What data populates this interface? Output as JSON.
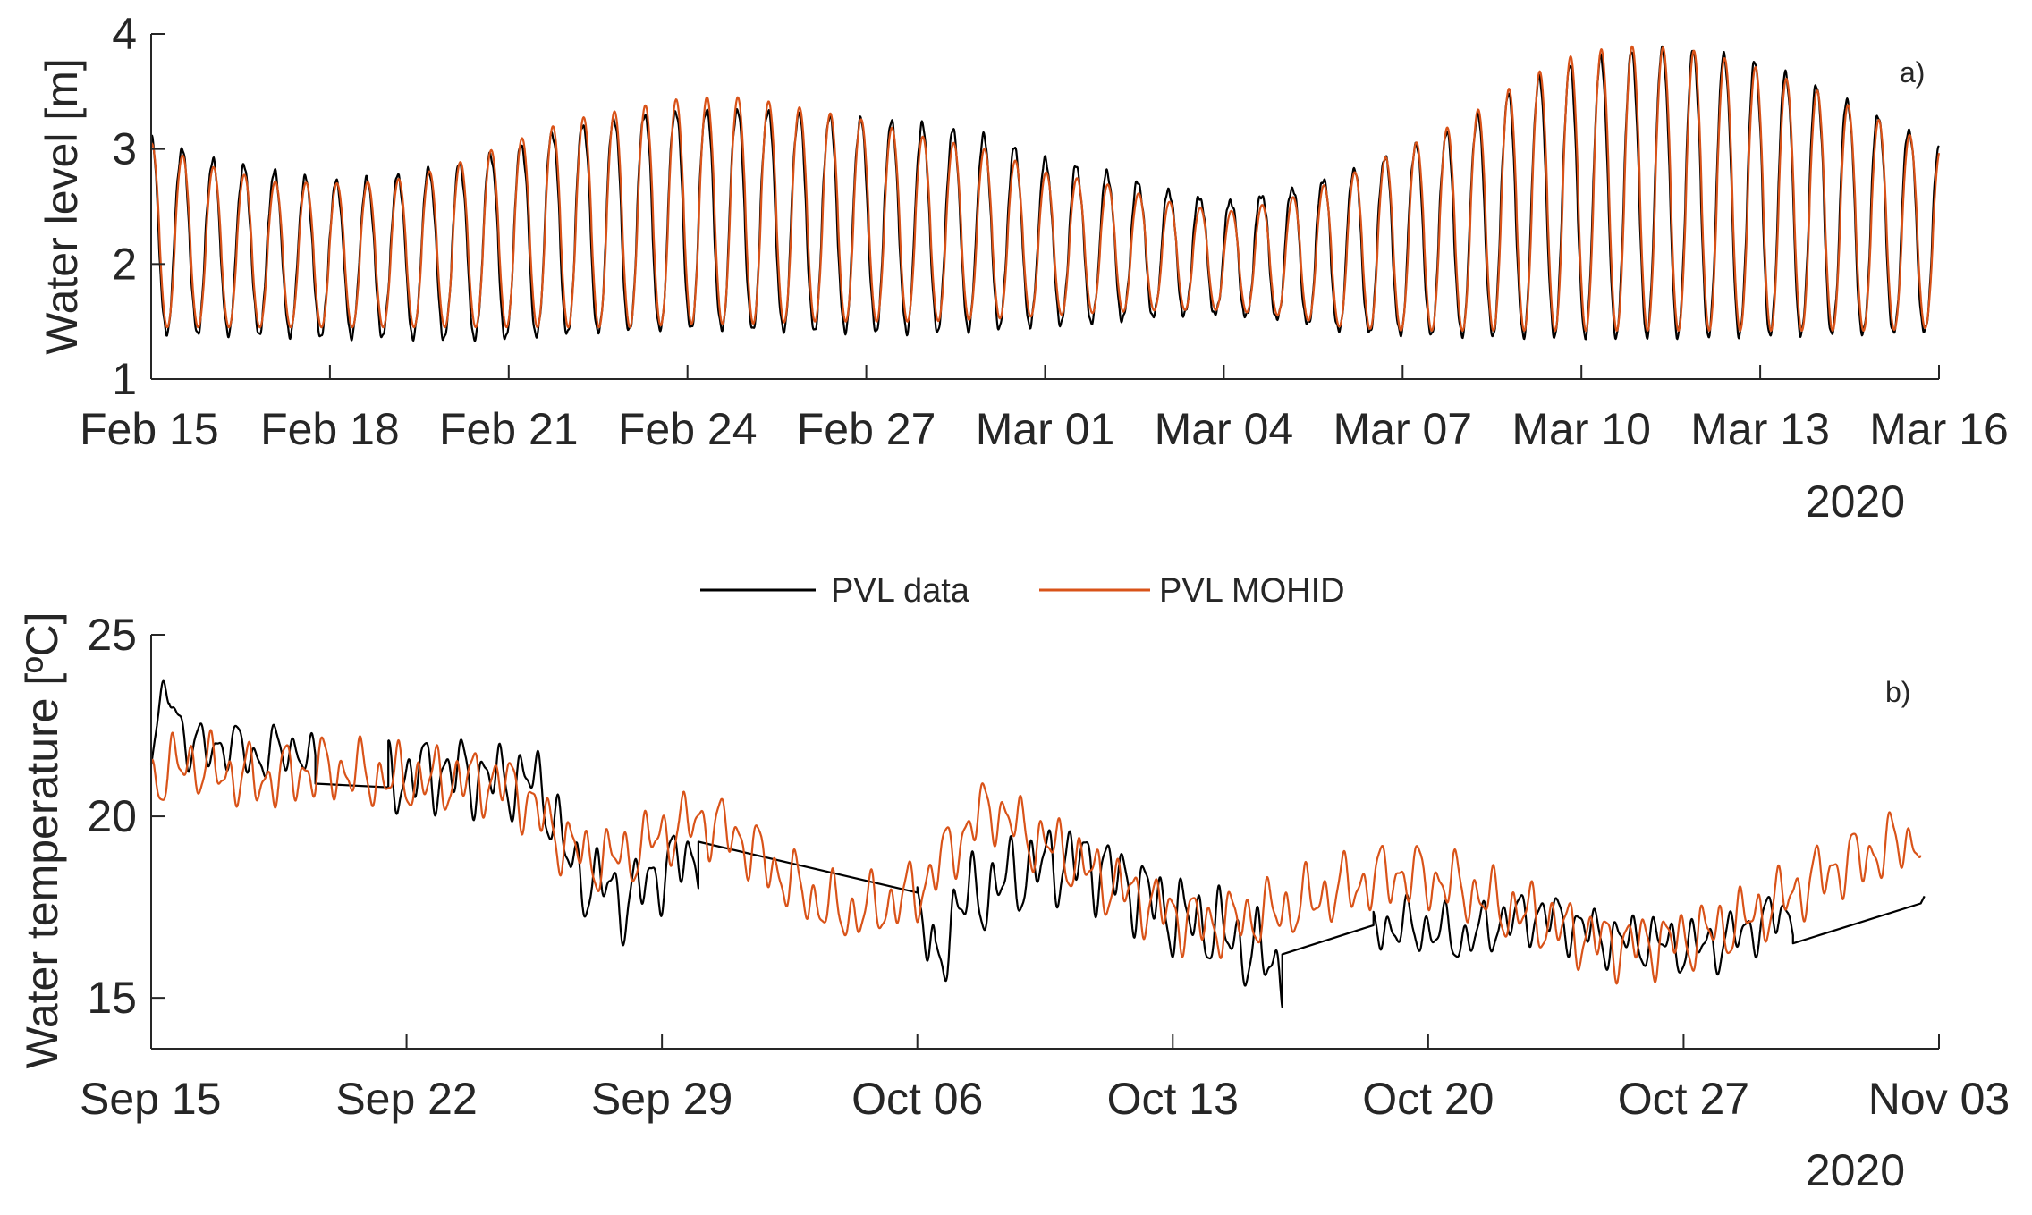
{
  "colors": {
    "data": "#000000",
    "model": "#d95319",
    "axis": "#262626"
  },
  "legend": {
    "entries": [
      {
        "label": "PVL data",
        "color": "#000000"
      },
      {
        "label": "PVL MOHID",
        "color": "#d95319"
      }
    ]
  },
  "chart_data": [
    {
      "type": "line",
      "panel_label": "a)",
      "ylabel": "Water level [m]",
      "ylim": [
        1,
        4
      ],
      "yticks": [
        1,
        2,
        3,
        4
      ],
      "year_label": "2020",
      "xlim_days": [
        0,
        30
      ],
      "xticks": [
        {
          "day": 0,
          "label": "Feb 15"
        },
        {
          "day": 3,
          "label": "Feb 18"
        },
        {
          "day": 6,
          "label": "Feb 21"
        },
        {
          "day": 9,
          "label": "Feb 24"
        },
        {
          "day": 12,
          "label": "Feb 27"
        },
        {
          "day": 15,
          "label": "Mar 01"
        },
        {
          "day": 18,
          "label": "Mar 04"
        },
        {
          "day": 21,
          "label": "Mar 07"
        },
        {
          "day": 24,
          "label": "Mar 10"
        },
        {
          "day": 27,
          "label": "Mar 13"
        },
        {
          "day": 30,
          "label": "Mar 16"
        }
      ],
      "tidal_period_days": 0.5175,
      "series": [
        {
          "name": "PVL data",
          "envelope_days": [
            0,
            1,
            2,
            3,
            4,
            5,
            6,
            7,
            8,
            9,
            10,
            11,
            12,
            13,
            14,
            15,
            16,
            17,
            18,
            19,
            20,
            21,
            22,
            23,
            24,
            25,
            26,
            27,
            28,
            29,
            30
          ],
          "high": [
            3.1,
            2.9,
            2.8,
            2.7,
            2.75,
            2.85,
            3.0,
            3.2,
            3.3,
            3.35,
            3.35,
            3.3,
            3.25,
            3.2,
            3.1,
            2.9,
            2.8,
            2.65,
            2.55,
            2.65,
            2.8,
            3.0,
            3.2,
            3.55,
            3.75,
            3.85,
            3.85,
            3.75,
            3.55,
            3.3,
            3.05
          ],
          "low": [
            1.4,
            1.4,
            1.4,
            1.38,
            1.38,
            1.35,
            1.35,
            1.38,
            1.4,
            1.42,
            1.42,
            1.42,
            1.42,
            1.42,
            1.45,
            1.48,
            1.5,
            1.55,
            1.55,
            1.5,
            1.4,
            1.38,
            1.38,
            1.38,
            1.38,
            1.38,
            1.38,
            1.38,
            1.38,
            1.38,
            1.4
          ]
        },
        {
          "name": "PVL MOHID",
          "envelope_days": [
            0,
            1,
            2,
            3,
            4,
            5,
            6,
            7,
            8,
            9,
            10,
            11,
            12,
            13,
            14,
            15,
            16,
            17,
            18,
            19,
            20,
            21,
            22,
            23,
            24,
            25,
            26,
            27,
            28,
            29,
            30
          ],
          "high": [
            3.05,
            2.85,
            2.72,
            2.7,
            2.72,
            2.85,
            3.05,
            3.25,
            3.35,
            3.45,
            3.45,
            3.35,
            3.25,
            3.1,
            3.0,
            2.8,
            2.7,
            2.55,
            2.45,
            2.55,
            2.75,
            3.0,
            3.25,
            3.6,
            3.85,
            3.9,
            3.85,
            3.7,
            3.5,
            3.25,
            3.0
          ],
          "low": [
            1.45,
            1.45,
            1.45,
            1.45,
            1.45,
            1.45,
            1.45,
            1.45,
            1.45,
            1.48,
            1.48,
            1.5,
            1.5,
            1.5,
            1.52,
            1.55,
            1.58,
            1.6,
            1.6,
            1.55,
            1.45,
            1.42,
            1.42,
            1.42,
            1.42,
            1.42,
            1.42,
            1.42,
            1.42,
            1.42,
            1.45
          ]
        }
      ]
    },
    {
      "type": "line",
      "panel_label": "b)",
      "ylabel": "Water temperature [ºC]",
      "ylim": [
        13.6,
        25
      ],
      "yticks": [
        15,
        20,
        25
      ],
      "year_label": "2020",
      "xlim_days": [
        0,
        49
      ],
      "xticks": [
        {
          "day": 0,
          "label": "Sep 15"
        },
        {
          "day": 7,
          "label": "Sep 22"
        },
        {
          "day": 14,
          "label": "Sep 29"
        },
        {
          "day": 21,
          "label": "Oct 06"
        },
        {
          "day": 28,
          "label": "Oct 13"
        },
        {
          "day": 35,
          "label": "Oct 20"
        },
        {
          "day": 42,
          "label": "Oct 27"
        },
        {
          "day": 49,
          "label": "Nov 03"
        }
      ],
      "series": [
        {
          "name": "PVL data",
          "segments": [
            {
              "days": [
                0,
                0.5,
                1,
                1.5,
                2,
                2.5,
                3,
                3.5,
                4,
                4.5
              ],
              "trend": [
                22.1,
                23.4,
                22.0,
                21.8,
                22.0,
                21.8,
                21.6,
                21.8,
                21.9,
                21.3
              ],
              "amp": 0.75
            },
            {
              "days": [
                4.5,
                6.5
              ],
              "trend": [
                20.9,
                20.8
              ],
              "amp": 0
            },
            {
              "days": [
                6.5,
                7.5,
                8.5,
                9.5,
                10.5,
                11,
                11.5,
                12,
                12.5,
                13,
                13.5,
                14,
                15
              ],
              "trend": [
                21.0,
                21.2,
                21.2,
                21.0,
                21.0,
                20.2,
                18.6,
                18.2,
                18.1,
                17.6,
                18.1,
                18.5,
                19.0
              ],
              "amp": 1.1
            },
            {
              "days": [
                15,
                21
              ],
              "trend": [
                19.3,
                17.9
              ],
              "amp": 0
            },
            {
              "days": [
                21,
                21.5,
                22,
                23,
                24,
                25,
                26,
                27,
                28,
                29,
                30,
                31
              ],
              "trend": [
                17.9,
                15.5,
                17.5,
                18.0,
                18.5,
                18.8,
                18.6,
                18.0,
                17.3,
                17.0,
                16.4,
                15.8
              ],
              "amp": 1.2
            },
            {
              "days": [
                31,
                33.5
              ],
              "trend": [
                16.2,
                17.0
              ],
              "amp": 0
            },
            {
              "days": [
                33.5,
                35,
                36,
                37,
                38,
                39,
                40,
                41,
                42,
                43,
                44,
                45
              ],
              "trend": [
                17.0,
                16.9,
                16.6,
                17.1,
                17.3,
                17.0,
                16.6,
                16.6,
                16.4,
                16.5,
                17.0,
                17.4
              ],
              "amp": 0.8
            },
            {
              "days": [
                45,
                48.5,
                48.6
              ],
              "trend": [
                16.5,
                17.6,
                17.8
              ],
              "amp": 0
            }
          ]
        },
        {
          "name": "PVL MOHID",
          "segments": [
            {
              "days": [
                0,
                1,
                2,
                3,
                4,
                5,
                6,
                7,
                8,
                9,
                10,
                11,
                12,
                13,
                14,
                15,
                16,
                17,
                18,
                19,
                20,
                21,
                22,
                23,
                24,
                25,
                26,
                27,
                28,
                29,
                30,
                31,
                32,
                33,
                34,
                35,
                36,
                37,
                38,
                39,
                40,
                41,
                42,
                43,
                44,
                45,
                46,
                47,
                48,
                48.5
              ],
              "trend": [
                21.0,
                21.5,
                21.2,
                21.0,
                21.2,
                21.3,
                21.1,
                21.0,
                21.0,
                21.0,
                20.8,
                19.6,
                18.8,
                18.9,
                19.5,
                19.9,
                19.5,
                18.6,
                17.8,
                17.3,
                17.5,
                17.9,
                19.2,
                20.3,
                19.5,
                19.0,
                18.3,
                17.8,
                17.3,
                17.0,
                17.2,
                17.4,
                17.8,
                18.1,
                18.4,
                18.3,
                18.0,
                17.5,
                17.2,
                16.8,
                16.5,
                16.5,
                16.6,
                16.9,
                17.3,
                17.9,
                18.5,
                18.9,
                19.3,
                19.4
              ],
              "amp": 0.95
            }
          ]
        }
      ]
    }
  ]
}
